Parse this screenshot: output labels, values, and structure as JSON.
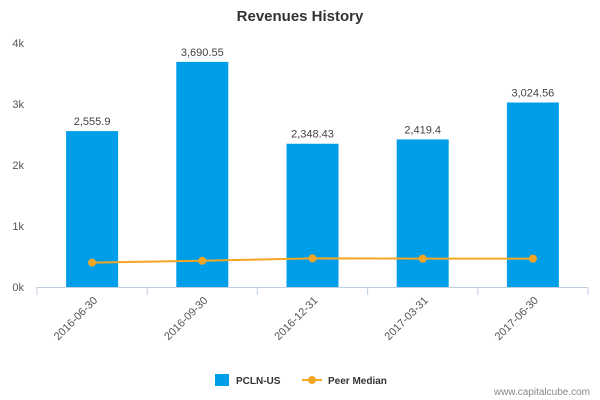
{
  "chart_data": {
    "type": "bar",
    "title": "Revenues History",
    "categories": [
      "2016-06-30",
      "2016-09-30",
      "2016-12-31",
      "2017-03-31",
      "2017-06-30"
    ],
    "series": [
      {
        "name": "PCLN-US",
        "kind": "bar",
        "color": "#009EE8",
        "values": [
          2555.9,
          3690.55,
          2348.43,
          2419.4,
          3024.56
        ],
        "data_labels": [
          "2,555.9",
          "3,690.55",
          "2,348.43",
          "2,419.4",
          "3,024.56"
        ]
      },
      {
        "name": "Peer Median",
        "kind": "line",
        "color": "#F5A623",
        "values": [
          400,
          430,
          470,
          465,
          465
        ]
      }
    ],
    "ylim": [
      0,
      4000
    ],
    "yticks": [
      0,
      1000,
      2000,
      3000,
      4000
    ],
    "ytick_labels": [
      "0k",
      "1k",
      "2k",
      "3k",
      "4k"
    ],
    "grid": false,
    "legend_position": "bottom-center"
  },
  "credit": "www.capitalcube.com",
  "colors": {
    "axis": "#C0CFE0",
    "bar": "#009EE8",
    "line": "#F5A623"
  }
}
